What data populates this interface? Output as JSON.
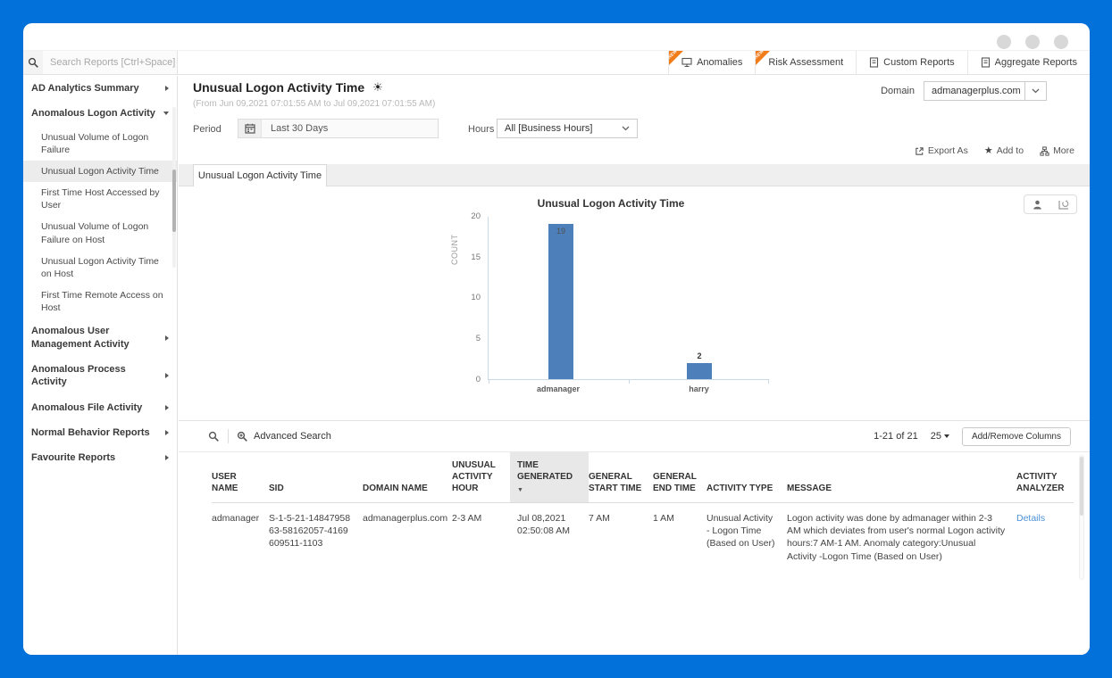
{
  "colors": {
    "frame_blue": "#0271da",
    "ribbon_orange": "#f07c1a",
    "bar_blue": "#4d80ba",
    "link_blue": "#4a90d9"
  },
  "topbar": {
    "search_placeholder": "Search Reports [Ctrl+Space]",
    "new_badge": "NEW",
    "tabs": [
      {
        "label": "Anomalies"
      },
      {
        "label": "Risk Assessment"
      },
      {
        "label": "Custom Reports"
      },
      {
        "label": "Aggregate Reports"
      }
    ]
  },
  "sidebar": {
    "items_top": [
      {
        "label": "AD Analytics Summary"
      }
    ],
    "expanded_group": {
      "label": "Anomalous Logon Activity"
    },
    "sub_items": [
      "Unusual Volume of Logon Failure",
      "Unusual Logon Activity Time",
      "First Time Host Accessed by User",
      "Unusual Volume of Logon Failure on Host",
      "Unusual Logon Activity Time on Host",
      "First Time Remote Access on Host"
    ],
    "selected_sub_item": "Unusual Logon Activity Time",
    "items_bottom": [
      "Anomalous User Management Activity",
      "Anomalous Process Activity",
      "Anomalous File Activity",
      "Normal Behavior Reports",
      "Favourite Reports"
    ]
  },
  "report_header": {
    "title": "Unusual Logon Activity Time",
    "date_range": "(From Jun 09,2021 07:01:55 AM to Jul 09,2021 07:01:55 AM)",
    "domain_label": "Domain",
    "domain_value": "admanagerplus.com"
  },
  "filters": {
    "period_label": "Period",
    "period_value": "Last 30 Days",
    "hours_label": "Hours",
    "hours_value": "All [Business Hours]"
  },
  "toolbar_actions": {
    "export_label": "Export As",
    "add_to_label": "Add to",
    "more_label": "More"
  },
  "content_tab": "Unusual Logon Activity Time",
  "chart_data": {
    "type": "bar",
    "title": "Unusual Logon Activity Time",
    "categories": [
      "admanager",
      "harry"
    ],
    "values": [
      19,
      2
    ],
    "ylabel": "COUNT",
    "ylim": [
      0,
      20
    ],
    "yticks": [
      0,
      5,
      10,
      15,
      20
    ],
    "bar_color": "#4d80ba",
    "grid": false,
    "legend": false
  },
  "table": {
    "advanced_search_label": "Advanced Search",
    "pagination": "1-21 of 21",
    "page_size": "25",
    "add_remove_columns_label": "Add/Remove Columns",
    "columns": [
      "USER NAME",
      "SID",
      "DOMAIN NAME",
      "UNUSUAL ACTIVITY HOUR",
      "TIME GENERATED",
      "GENERAL START TIME",
      "GENERAL END TIME",
      "ACTIVITY TYPE",
      "MESSAGE",
      "ACTIVITY ANALYZER"
    ],
    "sorted_column": "TIME GENERATED",
    "sort_direction": "desc",
    "rows": [
      {
        "user_name": "admanager",
        "sid": "S-1-5-21-1484795863-58162057-4169609511-1103",
        "domain_name": "admanagerplus.com",
        "unusual_activity_hour": "2-3 AM",
        "time_generated": "Jul 08,2021 02:50:08 AM",
        "general_start_time": "7 AM",
        "general_end_time": "1 AM",
        "activity_type": "Unusual Activity - Logon Time (Based on User)",
        "message": "Logon activity was done by admanager within 2-3 AM which deviates from user's normal Logon activity hours:7 AM-1 AM. Anomaly category:Unusual Activity -Logon Time (Based on User)",
        "activity_analyzer_label": "Details"
      }
    ]
  }
}
